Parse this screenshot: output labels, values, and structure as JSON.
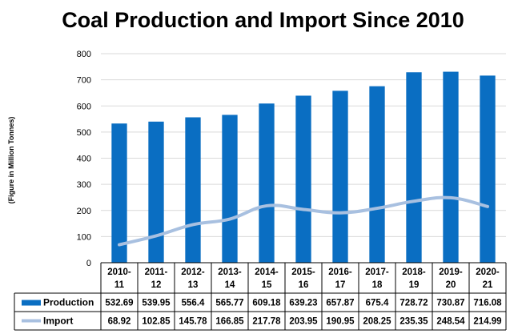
{
  "chart_data": {
    "type": "bar",
    "title": "Coal Production and Import Since 2010",
    "xlabel": "",
    "ylabel": "(Figure in Million Tonnes)",
    "ylim": [
      0,
      800
    ],
    "yticks": [
      0,
      100,
      200,
      300,
      400,
      500,
      600,
      700,
      800
    ],
    "grid": true,
    "legend": "data-table",
    "categories": [
      [
        "2010-",
        "11"
      ],
      [
        "2011-",
        "12"
      ],
      [
        "2012-",
        "13"
      ],
      [
        "2013-",
        "14"
      ],
      [
        "2014-",
        "15"
      ],
      [
        "2015-",
        "16"
      ],
      [
        "2016-",
        "17"
      ],
      [
        "2017-",
        "18"
      ],
      [
        "2018-",
        "19"
      ],
      [
        "2019-",
        "20"
      ],
      [
        "2020-",
        "21"
      ]
    ],
    "series": [
      {
        "name": "Production",
        "kind": "bar",
        "color": "#0a6ec2",
        "values": [
          532.69,
          539.95,
          556.4,
          565.77,
          609.18,
          639.23,
          657.87,
          675.4,
          728.72,
          730.87,
          716.08
        ],
        "labels": [
          "532.69",
          "539.95",
          "556.4",
          "565.77",
          "609.18",
          "639.23",
          "657.87",
          "675.4",
          "728.72",
          "730.87",
          "716.08"
        ]
      },
      {
        "name": "Import",
        "kind": "line",
        "color": "#a8c0e0",
        "values": [
          68.92,
          102.85,
          145.78,
          166.85,
          217.78,
          203.95,
          190.95,
          208.25,
          235.35,
          248.54,
          214.99
        ],
        "labels": [
          "68.92",
          "102.85",
          "145.78",
          "166.85",
          "217.78",
          "203.95",
          "190.95",
          "208.25",
          "235.35",
          "248.54",
          "214.99"
        ]
      }
    ]
  }
}
